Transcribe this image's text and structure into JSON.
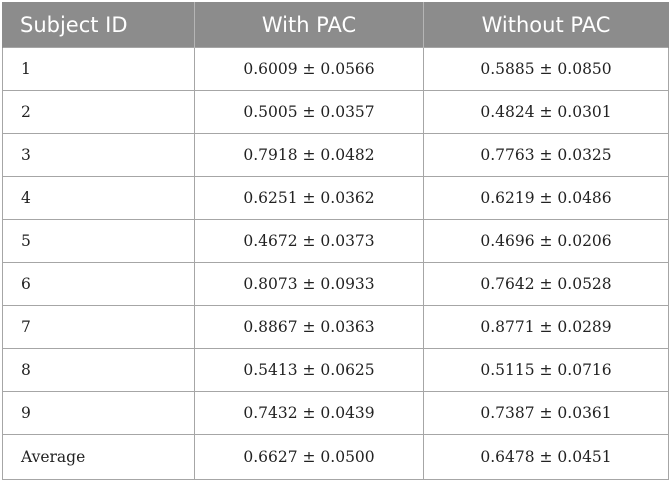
{
  "table": {
    "headers": [
      "Subject ID",
      "With PAC",
      "Without PAC"
    ],
    "rows": [
      [
        "1",
        "0.6009 ± 0.0566",
        "0.5885 ± 0.0850"
      ],
      [
        "2",
        "0.5005 ± 0.0357",
        "0.4824 ± 0.0301"
      ],
      [
        "3",
        "0.7918 ± 0.0482",
        "0.7763 ± 0.0325"
      ],
      [
        "4",
        "0.6251 ± 0.0362",
        "0.6219 ± 0.0486"
      ],
      [
        "5",
        "0.4672 ± 0.0373",
        "0.4696 ± 0.0206"
      ],
      [
        "6",
        "0.8073 ± 0.0933",
        "0.7642 ± 0.0528"
      ],
      [
        "7",
        "0.8867 ± 0.0363",
        "0.8771 ± 0.0289"
      ],
      [
        "8",
        "0.5413 ± 0.0625",
        "0.5115 ± 0.0716"
      ],
      [
        "9",
        "0.7432 ± 0.0439",
        "0.7387 ± 0.0361"
      ],
      [
        "Average",
        "0.6627 ± 0.0500",
        "0.6478 ± 0.0451"
      ]
    ]
  },
  "colors": {
    "header_bg": "#8c8c8c",
    "header_text": "#ffffff",
    "grid_line": "#a6a6a6",
    "body_text": "#222222"
  }
}
